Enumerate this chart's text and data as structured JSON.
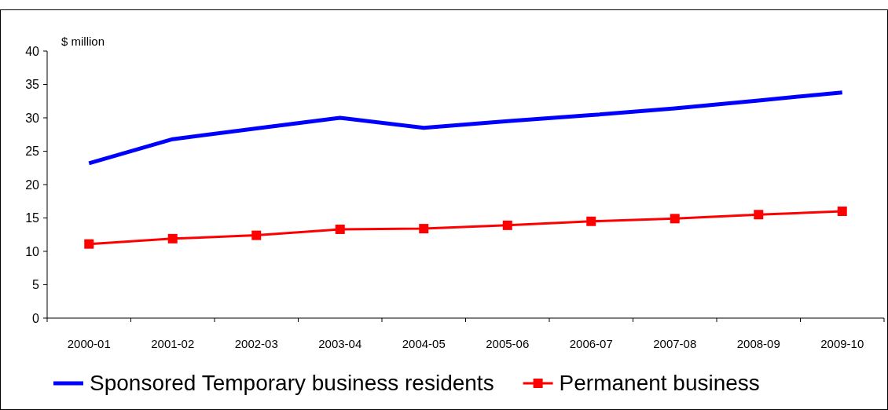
{
  "chart_data": {
    "type": "line",
    "ylabel": "$ million",
    "categories": [
      "2000-01",
      "2001-02",
      "2002-03",
      "2003-04",
      "2004-05",
      "2005-06",
      "2006-07",
      "2007-08",
      "2008-09",
      "2009-10"
    ],
    "series": [
      {
        "name": "Sponsored Temporary business residents",
        "color": "#0000ff",
        "marker": "none",
        "values": [
          23.2,
          26.8,
          28.4,
          30.0,
          28.5,
          29.5,
          30.4,
          31.4,
          32.6,
          33.8
        ]
      },
      {
        "name": "Permanent business",
        "color": "#ff0000",
        "marker": "square",
        "values": [
          11.1,
          11.9,
          12.4,
          13.3,
          13.4,
          13.9,
          14.5,
          14.9,
          15.5,
          16.0
        ]
      }
    ],
    "ylim": [
      0,
      40
    ],
    "yticks": [
      0,
      5,
      10,
      15,
      20,
      25,
      30,
      35,
      40
    ],
    "grid": false,
    "legend": "bottom"
  }
}
